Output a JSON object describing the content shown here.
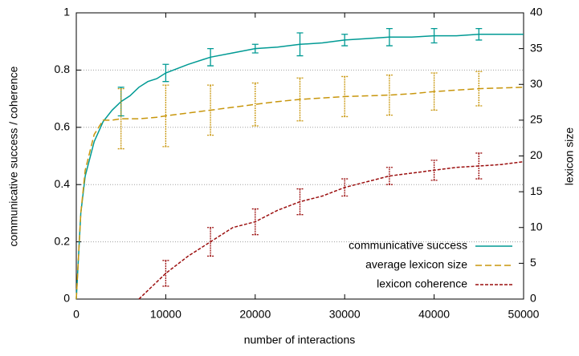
{
  "chart_data": {
    "type": "line",
    "xlabel": "number of interactions",
    "ylabel": "communicative success / coherence",
    "y2label": "lexicon size",
    "x": [
      0,
      500,
      1000,
      2000,
      3000,
      4000,
      5000,
      6000,
      7000,
      8000,
      9000,
      10000,
      12500,
      15000,
      17500,
      20000,
      22500,
      25000,
      27500,
      30000,
      32500,
      35000,
      37500,
      40000,
      42500,
      45000,
      47500,
      50000
    ],
    "xlim": [
      0,
      50000
    ],
    "xticks": [
      0,
      10000,
      20000,
      30000,
      40000,
      50000
    ],
    "ylim": [
      0,
      1
    ],
    "yticks": [
      0,
      0.2,
      0.4,
      0.6,
      0.8,
      1
    ],
    "y2lim": [
      0,
      40
    ],
    "y2ticks": [
      0,
      5,
      10,
      15,
      20,
      25,
      30,
      35,
      40
    ],
    "grid": true,
    "legend": "lower right",
    "series": [
      {
        "name": "communicative success",
        "color": "#009a94",
        "values": [
          0,
          0.3,
          0.43,
          0.55,
          0.62,
          0.66,
          0.69,
          0.71,
          0.74,
          0.76,
          0.77,
          0.79,
          0.82,
          0.845,
          0.86,
          0.875,
          0.88,
          0.89,
          0.895,
          0.905,
          0.91,
          0.915,
          0.915,
          0.92,
          0.92,
          0.925,
          0.925,
          0.925
        ],
        "errors": [
          null,
          null,
          null,
          null,
          null,
          null,
          0.05,
          null,
          null,
          null,
          null,
          0.03,
          null,
          0.03,
          null,
          0.015,
          null,
          0.04,
          null,
          0.02,
          null,
          0.03,
          null,
          0.025,
          null,
          0.02,
          null,
          null
        ]
      },
      {
        "name": "average lexicon size",
        "color": "#c8960c",
        "axis": "y2",
        "values": [
          0,
          12,
          18,
          23,
          25,
          25,
          25.2,
          25.2,
          25.2,
          25.3,
          25.4,
          25.6,
          26.0,
          26.4,
          26.8,
          27.2,
          27.6,
          27.9,
          28.1,
          28.3,
          28.4,
          28.5,
          28.7,
          29.0,
          29.2,
          29.4,
          29.5,
          29.6
        ],
        "errors": [
          null,
          null,
          null,
          null,
          null,
          null,
          4.2,
          null,
          null,
          null,
          null,
          4.3,
          null,
          3.5,
          null,
          3,
          null,
          3,
          null,
          2.8,
          null,
          2.8,
          null,
          2.6,
          null,
          2.4,
          null,
          null
        ]
      },
      {
        "name": "lexicon coherence",
        "color": "#9b0e0e",
        "values": [
          null,
          null,
          null,
          null,
          null,
          null,
          null,
          null,
          0,
          0.03,
          0.06,
          0.09,
          0.15,
          0.2,
          0.25,
          0.27,
          0.31,
          0.34,
          0.36,
          0.39,
          0.41,
          0.43,
          0.44,
          0.45,
          0.46,
          0.465,
          0.47,
          0.48
        ],
        "errors": [
          null,
          null,
          null,
          null,
          null,
          null,
          null,
          null,
          null,
          null,
          null,
          0.045,
          null,
          0.05,
          null,
          0.045,
          null,
          0.045,
          null,
          0.03,
          null,
          0.03,
          null,
          0.035,
          null,
          0.045,
          null,
          null
        ]
      }
    ]
  }
}
